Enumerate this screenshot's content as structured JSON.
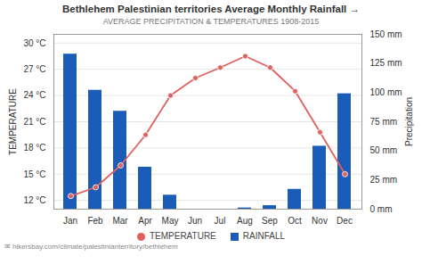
{
  "chart_data": {
    "type": "bar",
    "title": "Bethlehem Palestinian territories Average Monthly Rainfall →",
    "subtitle": "AVERAGE PRECIPITATION & TEMPERATURES 1908-2015",
    "categories": [
      "Jan",
      "Feb",
      "Mar",
      "Apr",
      "May",
      "Jun",
      "Jul",
      "Aug",
      "Sep",
      "Oct",
      "Nov",
      "Dec"
    ],
    "series": [
      {
        "name": "TEMPERATURE",
        "type": "line",
        "marker": "circle",
        "color": "#E06060",
        "values": [
          12.5,
          13.5,
          16.0,
          19.5,
          24.0,
          26.0,
          27.2,
          28.5,
          27.2,
          24.5,
          19.8,
          15.0
        ]
      },
      {
        "name": "RAINFALL",
        "type": "bar",
        "axis": "y2",
        "color": "#1A5CB8",
        "values": [
          133,
          102,
          84,
          36,
          12,
          0,
          0,
          1,
          3,
          17,
          54,
          99
        ]
      }
    ],
    "ylabel": "TEMPERATURE",
    "ylim": [
      11,
      31
    ],
    "yticks": [
      {
        "value": 12,
        "label": "12 °C"
      },
      {
        "value": 15,
        "label": "15 °C"
      },
      {
        "value": 18,
        "label": "18 °C"
      },
      {
        "value": 21,
        "label": "21 °C"
      },
      {
        "value": 24,
        "label": "24 °C"
      },
      {
        "value": 27,
        "label": "27 °C"
      },
      {
        "value": 30,
        "label": "30 °C"
      }
    ],
    "y2label": "Precipitation",
    "y2lim": [
      0,
      150
    ],
    "y2ticks": [
      {
        "value": 0,
        "label": "0 mm"
      },
      {
        "value": 25,
        "label": "25 mm"
      },
      {
        "value": 50,
        "label": "50 mm"
      },
      {
        "value": 75,
        "label": "75 mm"
      },
      {
        "value": 100,
        "label": "100 mm"
      },
      {
        "value": 125,
        "label": "125 mm"
      },
      {
        "value": 150,
        "label": "150 mm"
      }
    ],
    "grid": true,
    "legend": "bottom",
    "annotations": [
      "✉ hikersbay.com/climate/palestinianterritory/bethlehem"
    ]
  }
}
